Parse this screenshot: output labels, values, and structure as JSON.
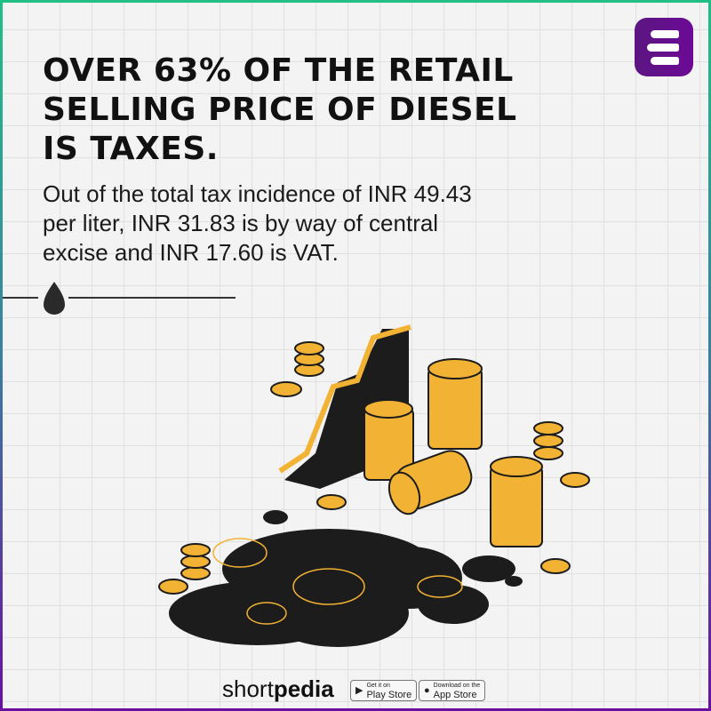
{
  "headline": "OVER 63% OF THE RETAIL SELLING PRICE OF DIESEL IS TAXES.",
  "subtext": "Out of the total tax incidence of INR 49.43 per liter, INR 31.83 is by way of central excise and INR 17.60 is VAT.",
  "brand": {
    "light": "short",
    "bold": "pedia"
  },
  "stores": [
    {
      "small": "Get it on",
      "label": "Play Store",
      "icon": "play-icon"
    },
    {
      "small": "Download on the",
      "label": "App Store",
      "icon": "apple-icon"
    }
  ],
  "colors": {
    "accent": "#6a0fa0",
    "gold": "#f2b233",
    "ink": "#1c1c1c"
  }
}
